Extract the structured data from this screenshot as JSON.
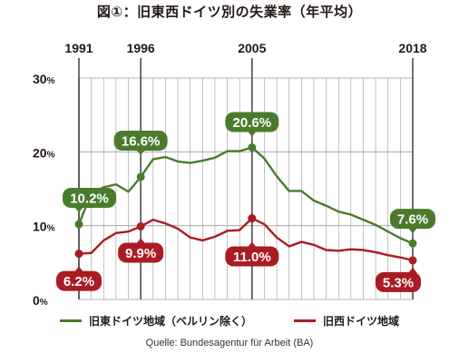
{
  "title": "図①：旧東西ドイツ別の失業率（年平均）",
  "source": "Quelle: Bundesagentur für Arbeit (BA)",
  "colors": {
    "east": "#4a7b2c",
    "west": "#aa1b22",
    "grid": "#9b9b9b",
    "axis": "#231815"
  },
  "chart_data": {
    "type": "line",
    "title": "図①：旧東西ドイツ別の失業率（年平均）",
    "xlim": [
      1991,
      2018
    ],
    "ylim": [
      0,
      30
    ],
    "yticks": [
      "0%",
      "10%",
      "20%",
      "30%"
    ],
    "xtick_labels": [
      "1991",
      "1996",
      "2005",
      "2018"
    ],
    "grid": true,
    "legend_position": "bottom",
    "x": [
      1991,
      1992,
      1993,
      1994,
      1995,
      1996,
      1997,
      1998,
      1999,
      2000,
      2001,
      2002,
      2003,
      2004,
      2005,
      2006,
      2007,
      2008,
      2009,
      2010,
      2011,
      2012,
      2013,
      2014,
      2015,
      2016,
      2017,
      2018
    ],
    "series": [
      {
        "name": "旧東ドイツ地域（ベルリン除く）",
        "color": "#4a7b2c",
        "values": [
          10.2,
          14.4,
          15.2,
          15.6,
          14.6,
          16.6,
          19.0,
          19.3,
          18.7,
          18.5,
          18.8,
          19.2,
          20.1,
          20.1,
          20.6,
          19.1,
          16.7,
          14.7,
          14.7,
          13.4,
          12.7,
          11.9,
          11.5,
          10.8,
          10.1,
          9.2,
          8.3,
          7.6
        ]
      },
      {
        "name": "旧西ドイツ地域",
        "color": "#aa1b22",
        "values": [
          6.2,
          6.3,
          8.0,
          9.0,
          9.2,
          9.9,
          10.8,
          10.3,
          9.6,
          8.4,
          8.0,
          8.5,
          9.3,
          9.4,
          11.0,
          10.2,
          8.4,
          7.2,
          7.8,
          7.4,
          6.7,
          6.6,
          6.8,
          6.7,
          6.4,
          6.0,
          5.7,
          5.3
        ]
      }
    ],
    "annotations": [
      {
        "series": 0,
        "year": 1991,
        "text": "10.2%"
      },
      {
        "series": 0,
        "year": 1996,
        "text": "16.6%"
      },
      {
        "series": 0,
        "year": 2005,
        "text": "20.6%"
      },
      {
        "series": 0,
        "year": 2018,
        "text": "7.6%"
      },
      {
        "series": 1,
        "year": 1991,
        "text": "6.2%"
      },
      {
        "series": 1,
        "year": 1996,
        "text": "9.9%"
      },
      {
        "series": 1,
        "year": 2005,
        "text": "11.0%"
      },
      {
        "series": 1,
        "year": 2018,
        "text": "5.3%"
      }
    ]
  }
}
